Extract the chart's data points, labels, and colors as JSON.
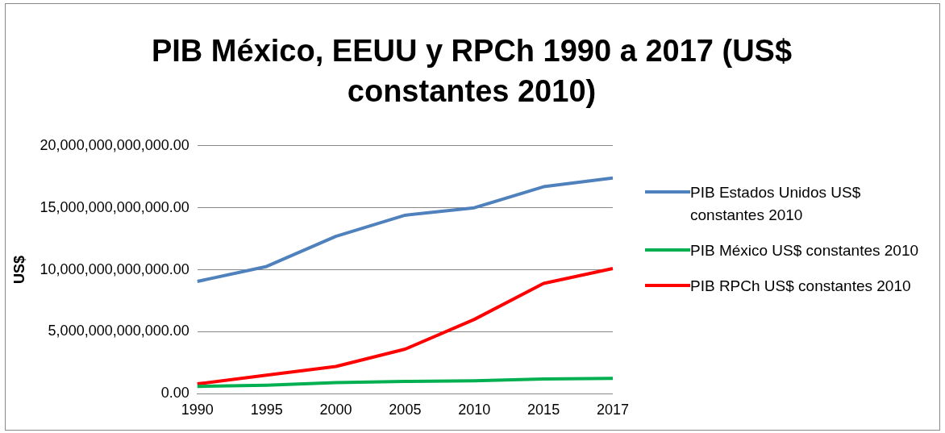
{
  "chart_data": {
    "type": "line",
    "title": "PIB México, EEUU y RPCh 1990 a 2017 (US$ constantes 2010)",
    "ylabel": "US$",
    "categories": [
      "1990",
      "1995",
      "2000",
      "2005",
      "2010",
      "2015",
      "2017"
    ],
    "series": [
      {
        "name": "PIB Estados Unidos US$ constantes 2010",
        "color": "#4f81bd",
        "values": [
          9060000000000.0,
          10270000000000.0,
          12700000000000.0,
          14400000000000.0,
          15000000000000.0,
          16700000000000.0,
          17400000000000.0
        ]
      },
      {
        "name": "PIB México US$ constantes 2010",
        "color": "#00b050",
        "values": [
          600000000000.0,
          700000000000.0,
          900000000000.0,
          1000000000000.0,
          1050000000000.0,
          1200000000000.0,
          1250000000000.0
        ]
      },
      {
        "name": "PIB RPCh US$ constantes 2010",
        "color": "#ff0000",
        "values": [
          800000000000.0,
          1500000000000.0,
          2200000000000.0,
          3600000000000.0,
          6000000000000.0,
          8900000000000.0,
          10100000000000.0
        ]
      }
    ],
    "ylim": [
      0,
      20000000000000.0
    ],
    "yticks": [
      {
        "value": 0,
        "label": "0.00"
      },
      {
        "value": 5000000000000.0,
        "label": "5,000,000,000,000.00"
      },
      {
        "value": 10000000000000.0,
        "label": "10,000,000,000,000.00"
      },
      {
        "value": 15000000000000.0,
        "label": "15,000,000,000,000.00"
      },
      {
        "value": 20000000000000.0,
        "label": "20,000,000,000,000.00"
      }
    ],
    "grid": "y",
    "legend": "right",
    "marker": "none",
    "line_style": "solid"
  }
}
